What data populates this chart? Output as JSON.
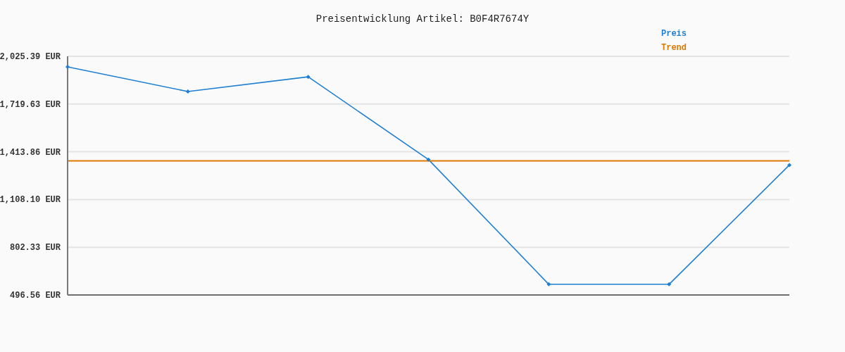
{
  "chart_data": {
    "type": "line",
    "title": "Preisentwicklung Artikel: B0F4R7674Y",
    "categories": [
      null,
      null,
      null,
      null,
      null,
      null,
      null
    ],
    "series": [
      {
        "name": "Preis",
        "color": "#1f7fd2",
        "values": [
          1958,
          1800,
          1894,
          1364,
          565,
          565,
          1329
        ],
        "marker": "diamond"
      },
      {
        "name": "Trend",
        "color": "#e07800",
        "values": [
          1356,
          1356,
          1356,
          1356,
          1356,
          1356,
          1356
        ],
        "marker": "none"
      }
    ],
    "ylim": [
      496.56,
      2025.39
    ],
    "yticks": [
      {
        "value": 496.56,
        "label": "496.56 EUR"
      },
      {
        "value": 802.33,
        "label": "802.33 EUR"
      },
      {
        "value": 1108.1,
        "label": "1,108.10 EUR"
      },
      {
        "value": 1413.86,
        "label": "1,413.86 EUR"
      },
      {
        "value": 1719.63,
        "label": "1,719.63 EUR"
      },
      {
        "value": 2025.39,
        "label": "2,025.39 EUR"
      }
    ],
    "grid": "y",
    "legend": "top right",
    "line_style": "solid"
  }
}
